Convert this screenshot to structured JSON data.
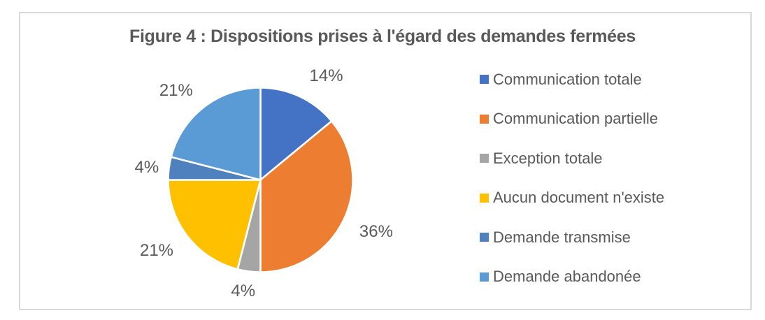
{
  "figure": {
    "title": "Figure 4 : Dispositions prises à l'égard des demandes fermées"
  },
  "chart_data": {
    "type": "pie",
    "title": "Figure 4 : Dispositions prises à l'égard des demandes fermées",
    "categories": [
      "Communication totale",
      "Communication partielle",
      "Exception totale",
      "Aucun document n'existe",
      "Demande transmise",
      "Demande abandonée"
    ],
    "values": [
      14,
      36,
      4,
      21,
      4,
      21
    ],
    "labels": [
      "14%",
      "36%",
      "4%",
      "21%",
      "4%",
      "21%"
    ],
    "unit": "%",
    "colors": [
      "#4472C4",
      "#ED7D31",
      "#A5A5A5",
      "#FFC000",
      "#4E81BD",
      "#5B9BD5"
    ],
    "start_angle_deg": 0,
    "direction": "clockwise",
    "legend_position": "right",
    "slice_border_color": "#FFFFFF",
    "text_color": "#595959",
    "frame_border_color": "#D9D9D9"
  }
}
